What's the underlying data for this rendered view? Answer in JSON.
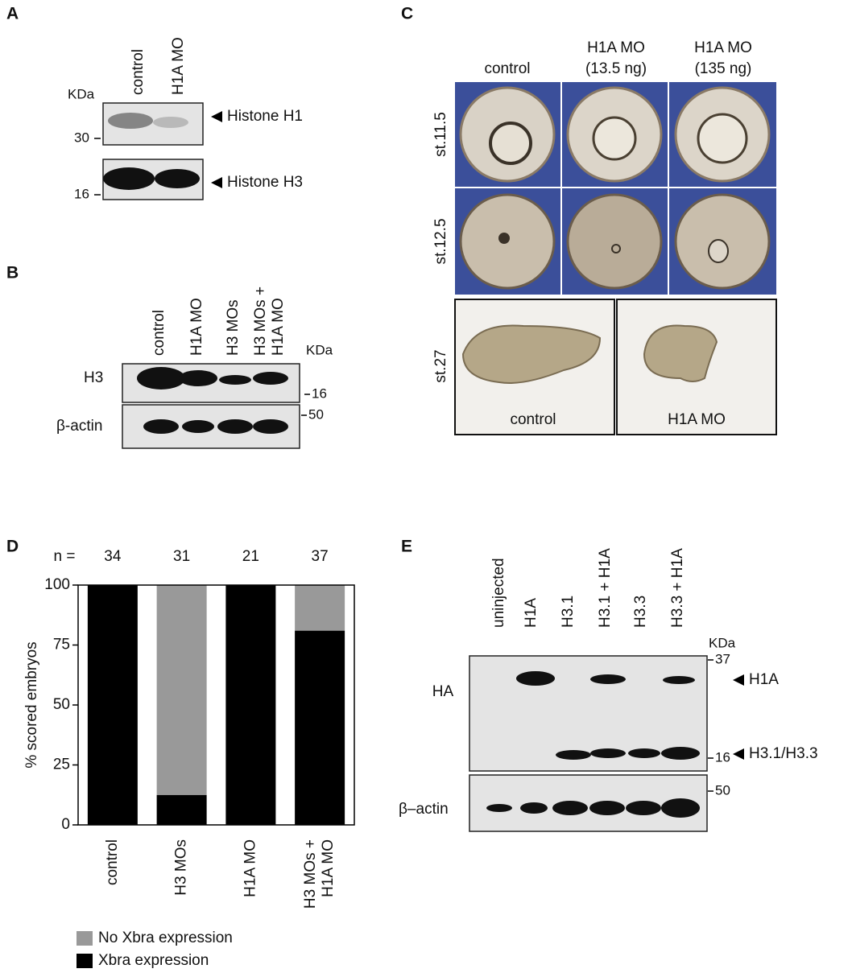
{
  "panels": {
    "A": {
      "letter": "A",
      "lanes": [
        "control",
        "H1A MO"
      ],
      "unit": "KDa",
      "markers": [
        "30",
        "16"
      ],
      "bands": [
        "Histone H1",
        "Histone H3"
      ]
    },
    "B": {
      "letter": "B",
      "lanes": [
        [
          "control"
        ],
        [
          "H1A MO"
        ],
        [
          "H3 MOs"
        ],
        [
          "H3 MOs +",
          "H1A MO"
        ]
      ],
      "unit": "KDa",
      "rows": [
        "H3",
        "β-actin"
      ],
      "markers": [
        "16",
        "50"
      ]
    },
    "C": {
      "letter": "C",
      "columns": [
        [
          "control"
        ],
        [
          "H1A MO",
          "(13.5 ng)"
        ],
        [
          "H1A MO",
          "(135 ng)"
        ]
      ],
      "rows": [
        "st.11.5",
        "st.12.5",
        "st.27"
      ],
      "captions": [
        "control",
        "H1A MO"
      ]
    },
    "D": {
      "letter": "D"
    },
    "E": {
      "letter": "E",
      "lanes": [
        "uninjected",
        "H1A",
        "H3.1",
        "H3.1 + H1A",
        "H3.3",
        "H3.3 + H1A"
      ],
      "unit": "KDa",
      "rows": [
        "HA",
        "β–actin"
      ],
      "markers": [
        "37",
        "16",
        "50"
      ],
      "bands": [
        "H1A",
        "H3.1/H3.3"
      ]
    }
  },
  "chart_data": {
    "type": "stacked_bar",
    "ylabel": "% scored embryos",
    "n_label": "n =",
    "n": [
      34,
      31,
      21,
      37
    ],
    "categories": [
      "control",
      "H3 MOs",
      "H1A MO",
      "H3 MOs + H1A MO"
    ],
    "series": [
      {
        "name": "No Xbra expression",
        "color": "#999999",
        "values": [
          0,
          87.5,
          0,
          19
        ]
      },
      {
        "name": "Xbra expression",
        "color": "#000000",
        "values": [
          100,
          12.5,
          100,
          81
        ]
      }
    ],
    "ylim": [
      0,
      100
    ],
    "yticks": [
      0,
      25,
      50,
      75,
      100
    ]
  }
}
